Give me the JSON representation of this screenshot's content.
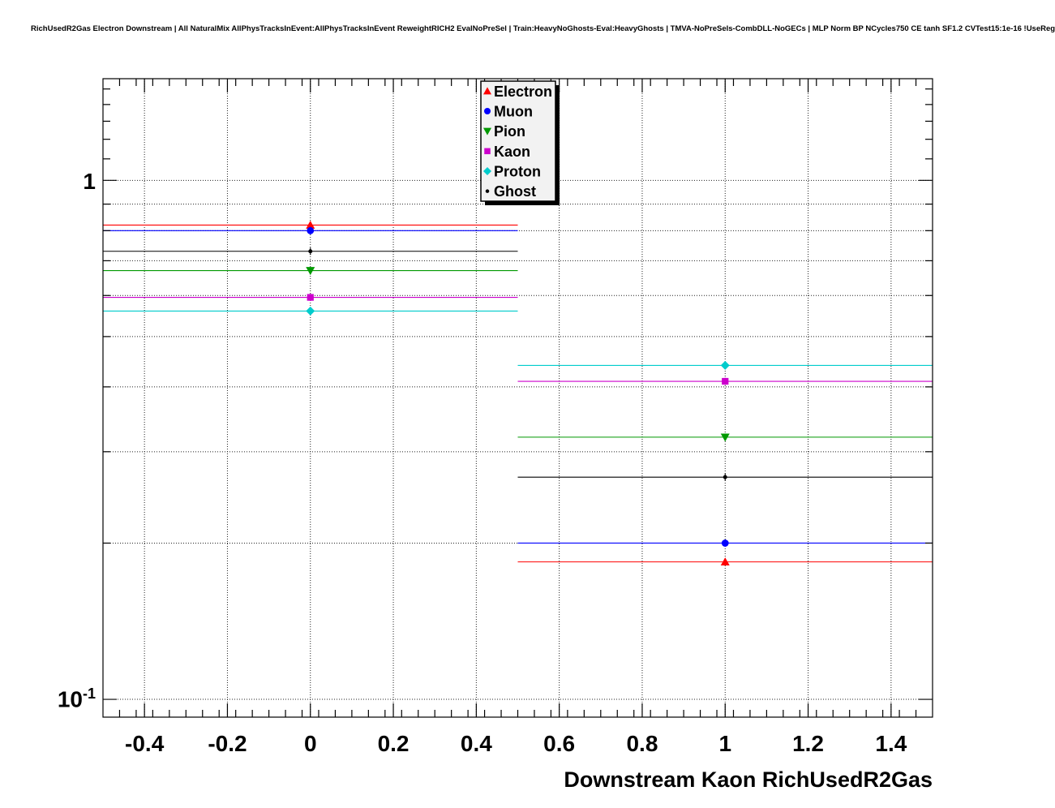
{
  "title": "RichUsedR2Gas Electron Downstream | All NaturalMix AllPhysTracksInEvent:AllPhysTracksInEvent ReweightRICH2 EvalNoPreSel | Train:HeavyNoGhosts-Eval:HeavyGhosts | TMVA-NoPreSels-CombDLL-NoGECs | MLP Norm BP NCycles750 CE tanh SF1.2 CVTest15:1e-16 !UseReg",
  "y_axis": {
    "label_one": "1",
    "label_tenth_base": "10",
    "label_tenth_exp": "-1"
  },
  "chart_data": {
    "type": "scatter",
    "title": "RichUsedR2Gas Electron Downstream",
    "xlabel": "Downstream Kaon RichUsedR2Gas",
    "ylabel": "",
    "yscale": "log",
    "xlim": [
      -0.5,
      1.5
    ],
    "ylim": [
      0.0924,
      1.57
    ],
    "grid": true,
    "legend_position": "top-center",
    "bin_half_width": 0.5,
    "x_tick_values": [
      -0.4,
      -0.2,
      0,
      0.2,
      0.4,
      0.6,
      0.8,
      1,
      1.2,
      1.4
    ],
    "x_tick_labels": [
      "-0.4",
      "-0.2",
      "0",
      "0.2",
      "0.4",
      "0.6",
      "0.8",
      "1",
      "1.2",
      "1.4"
    ],
    "y_major_ticks": [
      0.1,
      1
    ],
    "y_grid_values": [
      0.1,
      0.2,
      0.3,
      0.4,
      0.5,
      0.6,
      0.7,
      0.8,
      0.9,
      1.0
    ],
    "series": [
      {
        "name": "Electron",
        "color": "#ff0000",
        "marker": "triangle-up",
        "x": [
          0,
          1
        ],
        "y": [
          0.82,
          0.184
        ]
      },
      {
        "name": "Muon",
        "color": "#0000ff",
        "marker": "circle",
        "x": [
          0,
          1
        ],
        "y": [
          0.8,
          0.2
        ]
      },
      {
        "name": "Pion",
        "color": "#009900",
        "marker": "triangle-down",
        "x": [
          0,
          1
        ],
        "y": [
          0.67,
          0.32
        ]
      },
      {
        "name": "Kaon",
        "color": "#cc00cc",
        "marker": "square",
        "x": [
          0,
          1
        ],
        "y": [
          0.595,
          0.41
        ]
      },
      {
        "name": "Proton",
        "color": "#00cccc",
        "marker": "diamond",
        "x": [
          0,
          1
        ],
        "y": [
          0.56,
          0.44
        ]
      },
      {
        "name": "Ghost",
        "color": "#000000",
        "marker": "dot",
        "x": [
          0,
          1
        ],
        "y": [
          0.73,
          0.268
        ]
      }
    ]
  }
}
